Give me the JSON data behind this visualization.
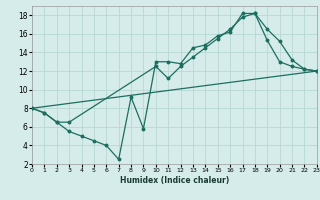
{
  "xlabel": "Humidex (Indice chaleur)",
  "xlim": [
    0,
    23
  ],
  "ylim": [
    2,
    19
  ],
  "xticks": [
    0,
    1,
    2,
    3,
    4,
    5,
    6,
    7,
    8,
    9,
    10,
    11,
    12,
    13,
    14,
    15,
    16,
    17,
    18,
    19,
    20,
    21,
    22,
    23
  ],
  "yticks": [
    2,
    4,
    6,
    8,
    10,
    12,
    14,
    16,
    18
  ],
  "background_color": "#d5ecea",
  "grid_color": "#b8d8d4",
  "line_color": "#1e6e60",
  "line1_x": [
    0,
    1,
    2,
    3,
    4,
    5,
    6,
    7,
    8,
    9,
    10,
    11,
    12,
    13,
    14,
    15,
    16,
    17,
    18,
    19,
    20,
    21,
    22,
    23
  ],
  "line1_y": [
    8.0,
    7.5,
    6.5,
    5.5,
    5.0,
    4.5,
    4.0,
    2.5,
    9.2,
    5.8,
    13.0,
    13.0,
    12.8,
    14.5,
    14.8,
    15.8,
    16.2,
    18.2,
    18.2,
    15.3,
    13.0,
    12.5,
    12.2,
    12.0
  ],
  "line2_x": [
    0,
    1,
    2,
    3,
    10,
    11,
    12,
    13,
    14,
    15,
    16,
    17,
    18,
    19,
    20,
    21,
    22,
    23
  ],
  "line2_y": [
    8.0,
    7.5,
    6.5,
    6.5,
    12.5,
    11.2,
    12.5,
    13.5,
    14.5,
    15.5,
    16.5,
    17.8,
    18.2,
    16.5,
    15.2,
    13.2,
    12.2,
    12.0
  ],
  "line3_x": [
    0,
    23
  ],
  "line3_y": [
    8.0,
    12.0
  ]
}
